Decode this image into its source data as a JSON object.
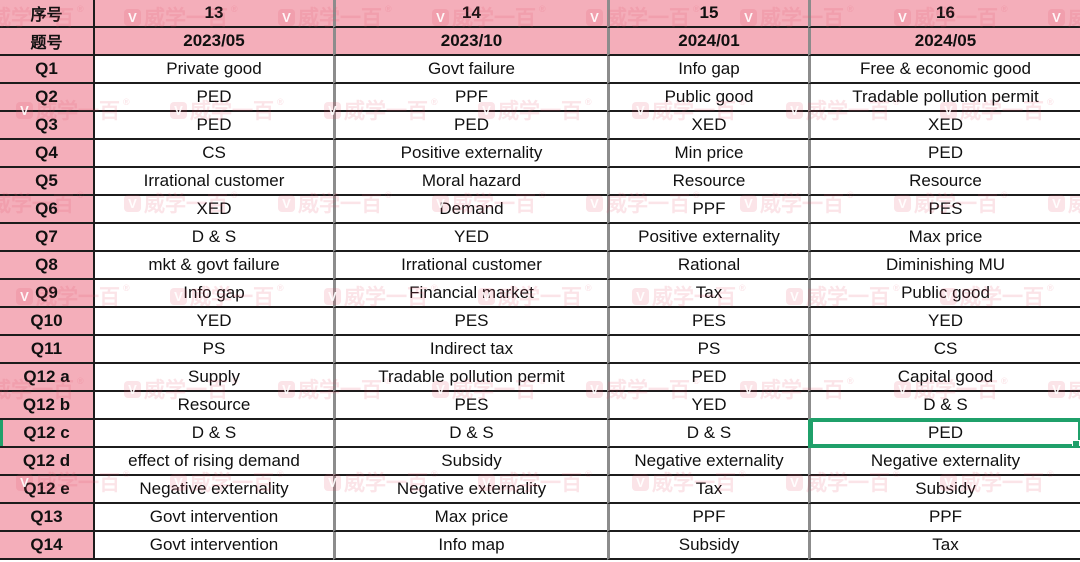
{
  "table": {
    "corner": {
      "row1": "序号",
      "row2": "题号"
    },
    "columns": [
      {
        "num": "13",
        "date": "2023/05"
      },
      {
        "num": "14",
        "date": "2023/10"
      },
      {
        "num": "15",
        "date": "2024/01"
      },
      {
        "num": "16",
        "date": "2024/05"
      }
    ],
    "rows": [
      {
        "label": "Q1",
        "cells": [
          "Private good",
          "Govt failure",
          "Info gap",
          "Free & economic good"
        ]
      },
      {
        "label": "Q2",
        "cells": [
          "PED",
          "PPF",
          "Public good",
          "Tradable pollution permit"
        ]
      },
      {
        "label": "Q3",
        "cells": [
          "PED",
          "PED",
          "XED",
          "XED"
        ]
      },
      {
        "label": "Q4",
        "cells": [
          "CS",
          "Positive externality",
          "Min price",
          "PED"
        ]
      },
      {
        "label": "Q5",
        "cells": [
          "Irrational customer",
          "Moral hazard",
          "Resource",
          "Resource"
        ]
      },
      {
        "label": "Q6",
        "cells": [
          "XED",
          "Demand",
          "PPF",
          "PES"
        ]
      },
      {
        "label": "Q7",
        "cells": [
          "D & S",
          "YED",
          "Positive externality",
          "Max price"
        ]
      },
      {
        "label": "Q8",
        "cells": [
          "mkt & govt failure",
          "Irrational customer",
          "Rational",
          "Diminishing MU"
        ]
      },
      {
        "label": "Q9",
        "cells": [
          "Info gap",
          "Financial market",
          "Tax",
          "Public good"
        ]
      },
      {
        "label": "Q10",
        "cells": [
          "YED",
          "PES",
          "PES",
          "YED"
        ]
      },
      {
        "label": "Q11",
        "cells": [
          "PS",
          "Indirect tax",
          "PS",
          "CS"
        ]
      },
      {
        "label": "Q12 a",
        "cells": [
          "Supply",
          "Tradable pollution permit",
          "PED",
          "Capital good"
        ]
      },
      {
        "label": "Q12 b",
        "cells": [
          "Resource",
          "PES",
          "YED",
          "D & S"
        ]
      },
      {
        "label": "Q12 c",
        "cells": [
          "D & S",
          "D & S",
          "D & S",
          "PED"
        ]
      },
      {
        "label": "Q12 d",
        "cells": [
          "effect of rising demand",
          "Subsidy",
          "Negative externality",
          "Negative externality"
        ]
      },
      {
        "label": "Q12 e",
        "cells": [
          "Negative externality",
          "Negative externality",
          "Tax",
          "Subsidy"
        ]
      },
      {
        "label": "Q13",
        "cells": [
          "Govt intervention",
          "Max price",
          "PPF",
          "PPF"
        ]
      },
      {
        "label": "Q14",
        "cells": [
          "Govt intervention",
          "Info map",
          "Subsidy",
          "Tax"
        ]
      }
    ]
  },
  "selection": {
    "row_label": "Q12 c",
    "column_num": "16",
    "value": "PED"
  },
  "watermark": {
    "text": "威学一百",
    "logo": "V",
    "reg": "®"
  },
  "colors": {
    "header_pink": "#F4AEBA",
    "grid_dark": "#1C1C1C",
    "grid_gray": "#8C8C8C",
    "selection_green": "#1FA06A"
  }
}
